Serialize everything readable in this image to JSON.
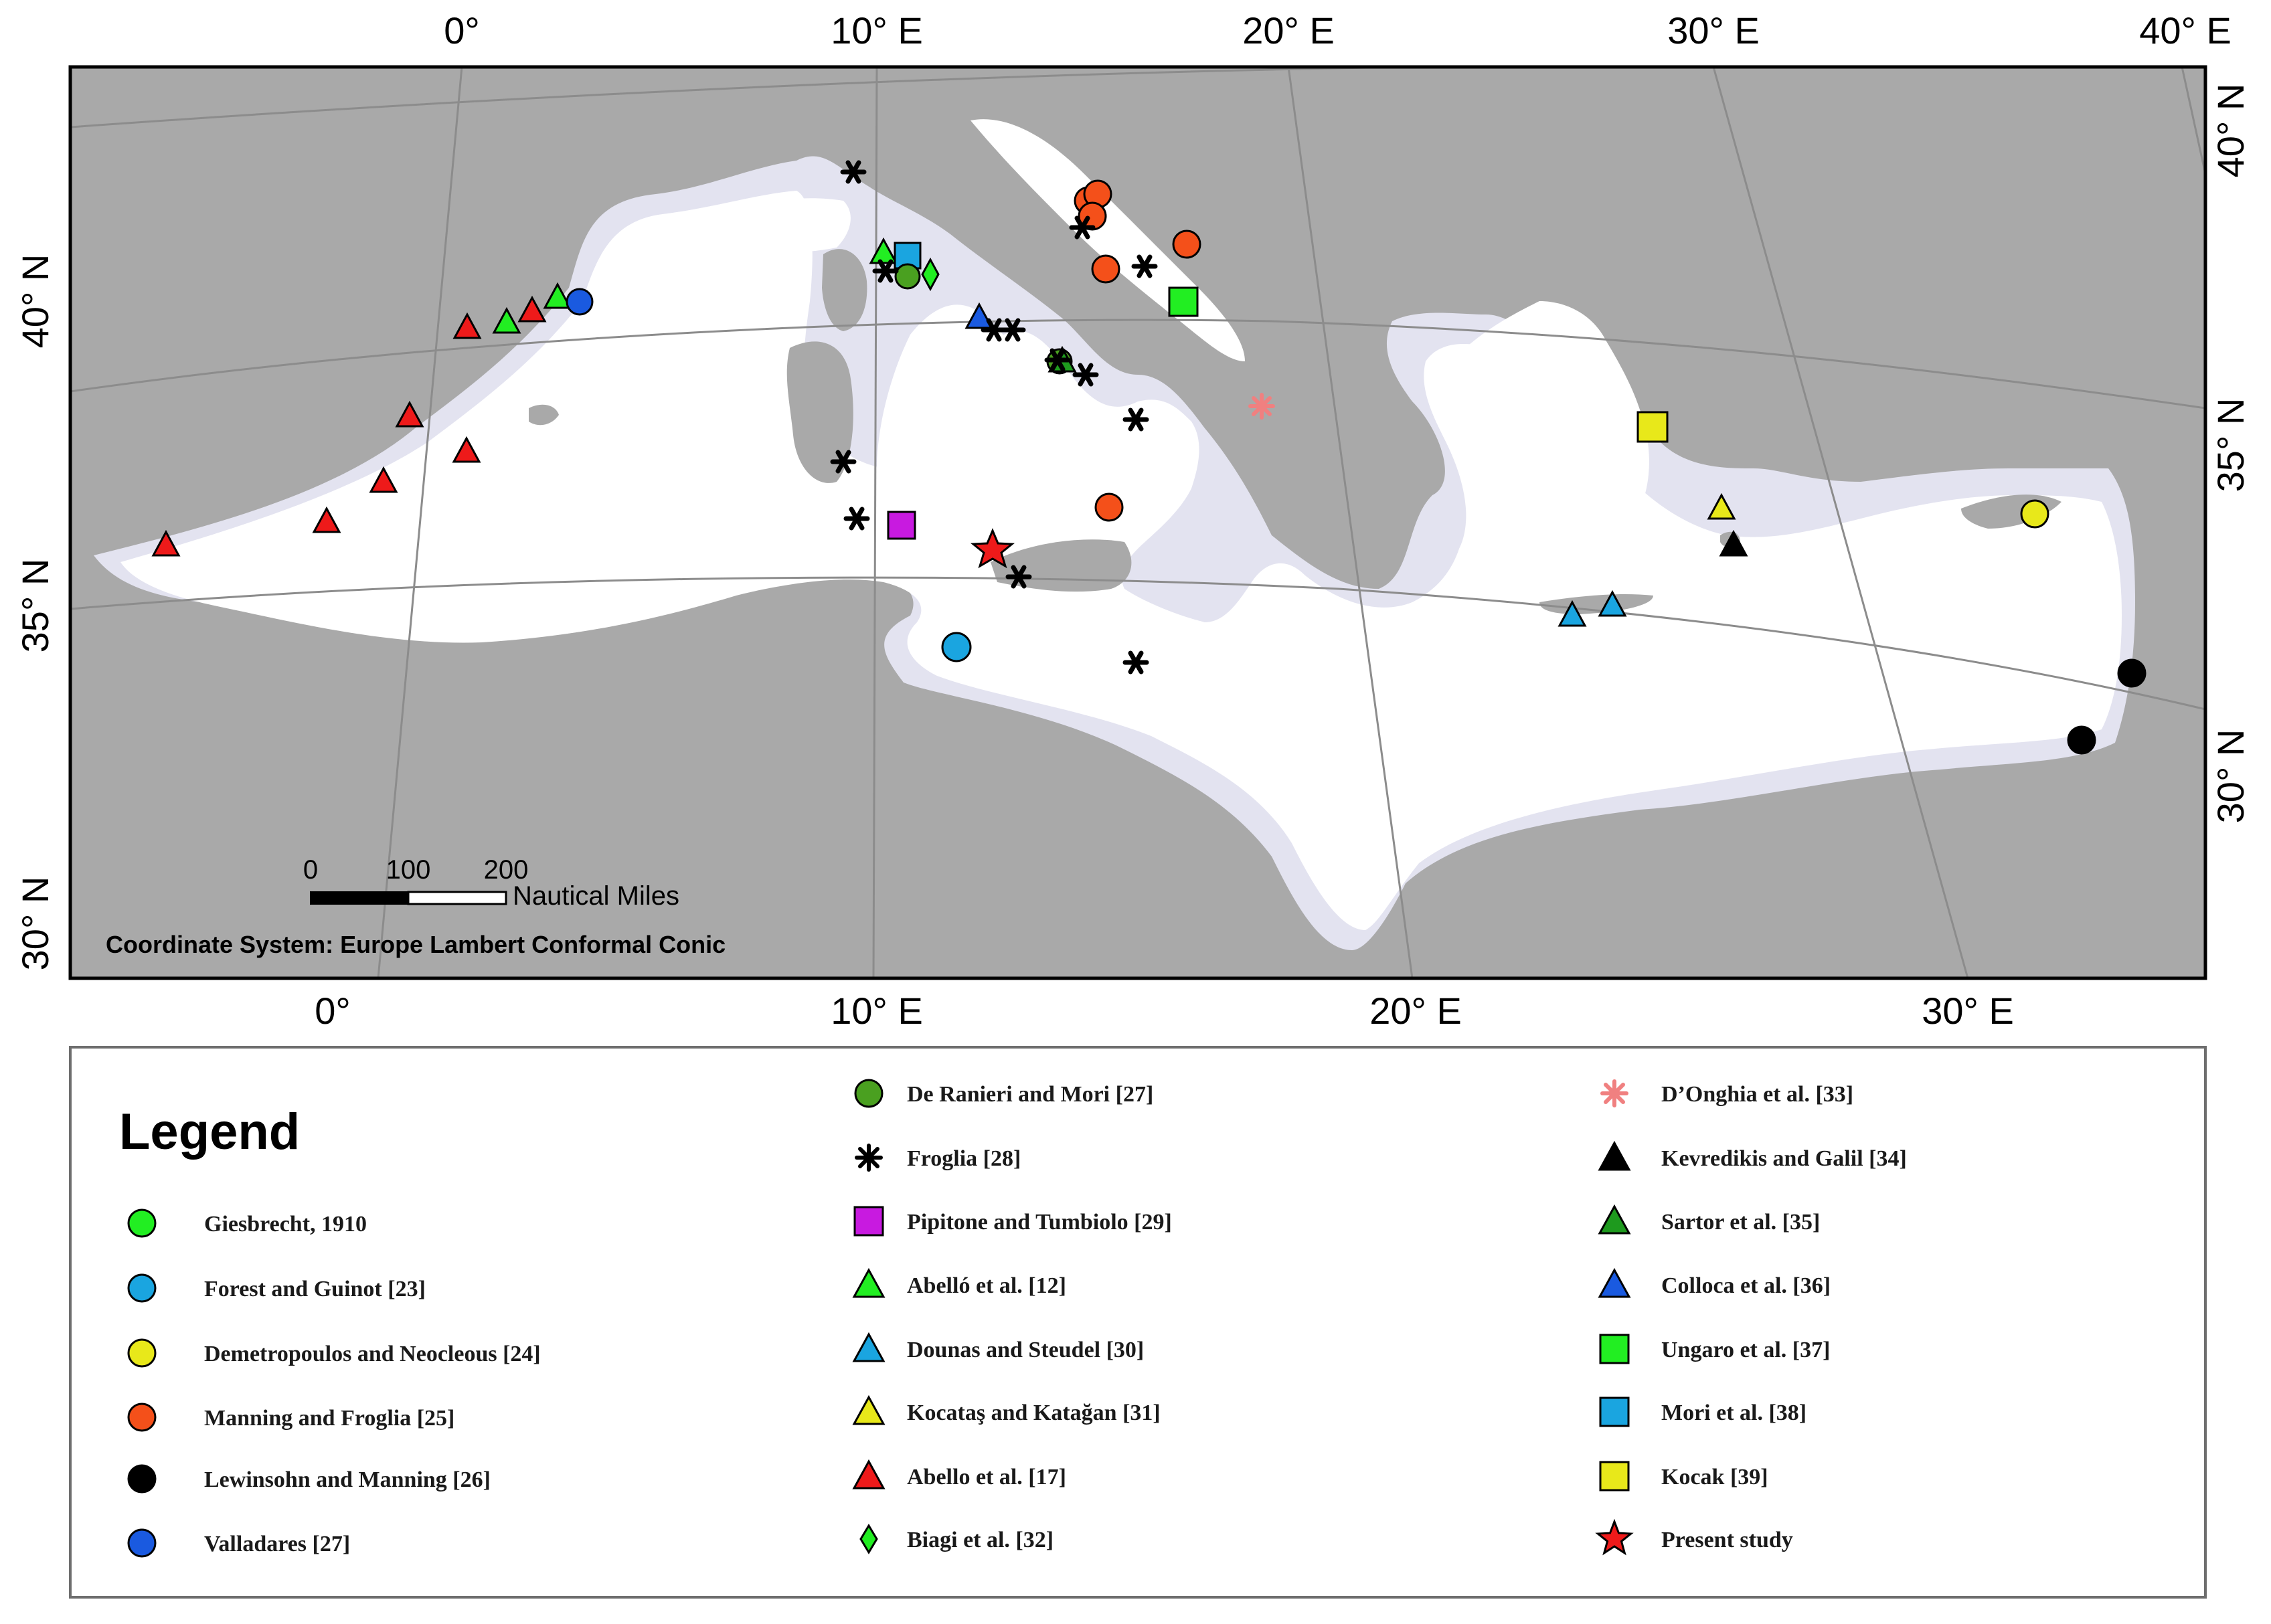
{
  "map": {
    "coordinate_system": "Coordinate System: Europe Lambert Conformal Conic",
    "scale_bar": {
      "ticks": [
        "0",
        "100",
        "200"
      ],
      "unit": "Nautical Miles"
    },
    "top_lon_labels": [
      "0°",
      "10° E",
      "20° E",
      "30° E",
      "40° E"
    ],
    "bottom_lon_labels": [
      "0°",
      "10° E",
      "20° E",
      "30° E"
    ],
    "left_lat_labels": [
      "40° N",
      "35° N",
      "30° N"
    ],
    "right_lat_labels": [
      "40° N",
      "35° N",
      "30° N"
    ],
    "colors": {
      "land": "#a9a9a9",
      "sea": "#ffffff",
      "shelf": "#e3e3f0",
      "grid": "#8c8c8c"
    }
  },
  "legend": {
    "title": "Legend",
    "items": [
      {
        "label": "Giesbrecht, 1910",
        "symbol": "circle",
        "color": "#22ee22"
      },
      {
        "label": "Forest and Guinot [23]",
        "symbol": "circle",
        "color": "#1aa5e0"
      },
      {
        "label": "Demetropoulos and Neocleous [24]",
        "symbol": "circle",
        "color": "#e8e81a"
      },
      {
        "label": "Manning and Froglia [25]",
        "symbol": "circle",
        "color": "#f4501a"
      },
      {
        "label": "Lewinsohn and Manning [26]",
        "symbol": "circle",
        "color": "#000000"
      },
      {
        "label": "Valladares [27]",
        "symbol": "circle",
        "color": "#1a5ae0"
      },
      {
        "label": "De Ranieri and Mori [27]",
        "symbol": "circle",
        "color": "#4aa020"
      },
      {
        "label": "Froglia [28]",
        "symbol": "asterisk",
        "color": "#000000"
      },
      {
        "label": "Pipitone and Tumbiolo [29]",
        "symbol": "square",
        "color": "#c81ae0"
      },
      {
        "label": "Abelló et al. [12]",
        "symbol": "triangle",
        "color": "#22ee22"
      },
      {
        "label": "Dounas and Steudel [30]",
        "symbol": "triangle",
        "color": "#1aa5e0"
      },
      {
        "label": "Kocataş and Katağan [31]",
        "symbol": "triangle",
        "color": "#e8e81a"
      },
      {
        "label": "Abello et al. [17]",
        "symbol": "triangle",
        "color": "#ee1a1a"
      },
      {
        "label": "Biagi et al. [32]",
        "symbol": "diamond",
        "color": "#22ee22"
      },
      {
        "label": "D’Onghia et al. [33]",
        "symbol": "asterisk",
        "color": "#f08080"
      },
      {
        "label": "Kevredikis and Galil [34]",
        "symbol": "triangle",
        "color": "#000000"
      },
      {
        "label": "Sartor et al. [35]",
        "symbol": "triangle",
        "color": "#1e9a1e"
      },
      {
        "label": "Colloca et al. [36]",
        "symbol": "triangle",
        "color": "#1a5ae0"
      },
      {
        "label": "Ungaro et al. [37]",
        "symbol": "square",
        "color": "#22ee22"
      },
      {
        "label": "Mori et al. [38]",
        "symbol": "square",
        "color": "#1aa5e0"
      },
      {
        "label": "Kocak [39]",
        "symbol": "square",
        "color": "#e8e81a"
      },
      {
        "label": "Present study",
        "symbol": "star",
        "color": "#ee1a1a"
      }
    ]
  }
}
